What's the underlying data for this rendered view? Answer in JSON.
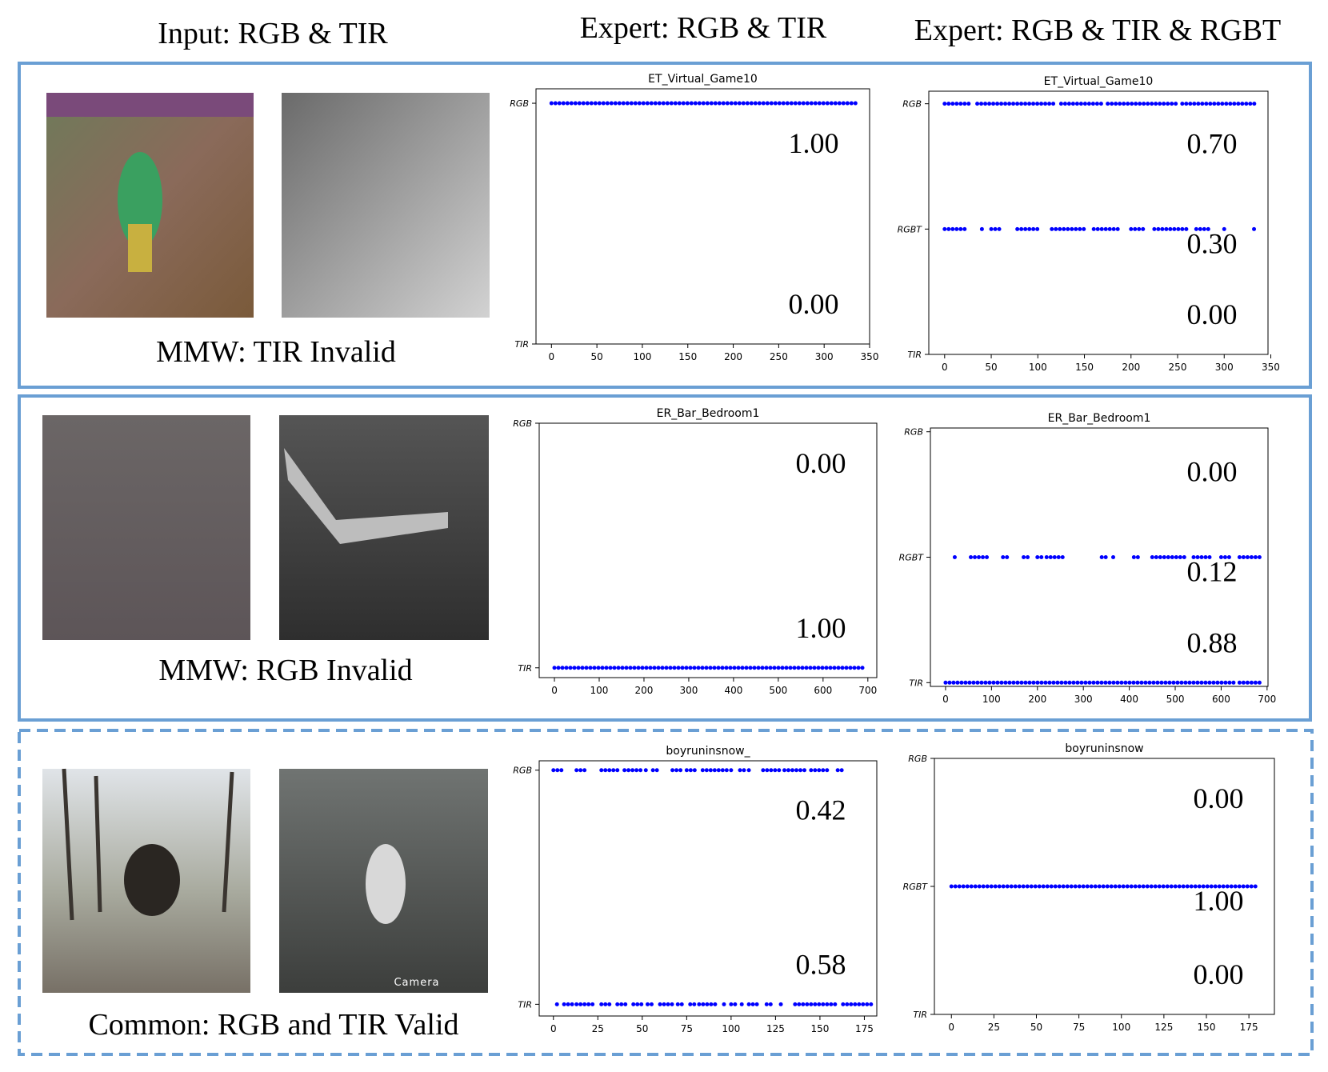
{
  "headers": [
    "Input: RGB & TIR",
    "Expert: RGB & TIR",
    "Expert: RGB & TIR & RGBT"
  ],
  "panels": [
    {
      "caption": "MMW: TIR Invalid"
    },
    {
      "caption": "MMW: RGB Invalid"
    },
    {
      "caption": "Common: RGB and TIR Valid",
      "image_label": "Camera"
    }
  ],
  "chart_data": [
    {
      "type": "strip",
      "title": "ET_Virtual_Game10",
      "categories": [
        "TIR",
        "RGB"
      ],
      "ylim": [
        0,
        1.06
      ],
      "xlim": [
        -17,
        350
      ],
      "xticks": [
        0,
        50,
        100,
        150,
        200,
        250,
        300,
        350
      ],
      "color": "#0000ff",
      "rows": [
        [],
        [
          [
            0,
            335
          ]
        ]
      ],
      "annotations": [
        "0.00",
        "1.00"
      ]
    },
    {
      "type": "strip",
      "title": "ET_Virtual_Game10",
      "categories": [
        "TIR",
        "RGBT",
        "RGB"
      ],
      "ylim": [
        0,
        2.1
      ],
      "xlim": [
        -17,
        347
      ],
      "xticks": [
        0,
        50,
        100,
        150,
        200,
        250,
        300,
        350
      ],
      "color": "#0000ff",
      "rows": [
        [],
        [
          [
            0,
            25
          ],
          [
            40,
            40
          ],
          [
            50,
            62
          ],
          [
            78,
            100
          ],
          [
            115,
            150
          ],
          [
            160,
            190
          ],
          [
            200,
            215
          ],
          [
            225,
            260
          ],
          [
            270,
            285
          ],
          [
            300,
            302
          ],
          [
            332,
            335
          ]
        ],
        [
          [
            0,
            30
          ],
          [
            35,
            120
          ],
          [
            125,
            170
          ],
          [
            175,
            250
          ],
          [
            255,
            335
          ]
        ]
      ],
      "annotations": [
        "0.00",
        "0.30",
        "0.70"
      ]
    },
    {
      "type": "strip",
      "title": "ER_Bar_Bedroom1",
      "categories": [
        "TIR",
        "RGB"
      ],
      "ylim": [
        -0.04,
        1
      ],
      "xlim": [
        -34,
        720
      ],
      "xticks": [
        0,
        100,
        200,
        300,
        400,
        500,
        600,
        700
      ],
      "color": "#0000ff",
      "rows": [
        [
          [
            0,
            690
          ]
        ],
        []
      ],
      "annotations": [
        "1.00",
        "0.00"
      ]
    },
    {
      "type": "strip",
      "title": "ER_Bar_Bedroom1",
      "categories": [
        "TIR",
        "RGBT",
        "RGB"
      ],
      "ylim": [
        -0.03,
        2.03
      ],
      "xlim": [
        -33,
        702
      ],
      "xticks": [
        0,
        100,
        200,
        300,
        400,
        500,
        600,
        700
      ],
      "color": "#0000ff",
      "rows": [
        [
          [
            0,
            630
          ],
          [
            640,
            690
          ]
        ],
        [
          [
            20,
            20
          ],
          [
            55,
            95
          ],
          [
            125,
            135
          ],
          [
            170,
            185
          ],
          [
            200,
            210
          ],
          [
            220,
            260
          ],
          [
            340,
            350
          ],
          [
            365,
            370
          ],
          [
            410,
            420
          ],
          [
            450,
            520
          ],
          [
            540,
            580
          ],
          [
            600,
            620
          ],
          [
            640,
            690
          ]
        ],
        []
      ],
      "annotations": [
        "0.88",
        "0.12",
        "0.00"
      ]
    },
    {
      "type": "strip",
      "title": "boyruninsnow_",
      "categories": [
        "TIR",
        "RGB"
      ],
      "ylim": [
        -0.05,
        1.04
      ],
      "xlim": [
        -8,
        182
      ],
      "xticks": [
        0,
        25,
        50,
        75,
        100,
        125,
        150,
        175
      ],
      "color": "#0000ff",
      "rows": [
        [
          [
            2,
            2
          ],
          [
            6,
            12
          ],
          [
            13,
            23
          ],
          [
            27,
            33
          ],
          [
            36,
            42
          ],
          [
            45,
            50
          ],
          [
            53,
            57
          ],
          [
            60,
            67
          ],
          [
            70,
            73
          ],
          [
            77,
            80
          ],
          [
            82,
            92
          ],
          [
            96,
            98
          ],
          [
            100,
            103
          ],
          [
            106,
            108
          ],
          [
            110,
            115
          ],
          [
            120,
            123
          ],
          [
            128,
            130
          ],
          [
            136,
            160
          ],
          [
            163,
            180
          ]
        ],
        [
          [
            0,
            5
          ],
          [
            13,
            18
          ],
          [
            27,
            37
          ],
          [
            40,
            50
          ],
          [
            52,
            53
          ],
          [
            56,
            60
          ],
          [
            67,
            72
          ],
          [
            75,
            80
          ],
          [
            84,
            98
          ],
          [
            100,
            102
          ],
          [
            105,
            108
          ],
          [
            110,
            112
          ],
          [
            118,
            129
          ],
          [
            130,
            142
          ],
          [
            145,
            155
          ],
          [
            160,
            163
          ]
        ]
      ],
      "annotations": [
        "0.58",
        "0.42"
      ]
    },
    {
      "type": "strip",
      "title": "boyruninsnow",
      "categories": [
        "TIR",
        "RGBT",
        "RGB"
      ],
      "ylim": [
        0,
        2
      ],
      "xlim": [
        -10,
        190
      ],
      "xticks": [
        0,
        25,
        50,
        75,
        100,
        125,
        150,
        175
      ],
      "color": "#0000ff",
      "rows": [
        [],
        [
          [
            0,
            180
          ]
        ],
        []
      ],
      "annotations": [
        "0.00",
        "1.00",
        "0.00"
      ]
    }
  ]
}
